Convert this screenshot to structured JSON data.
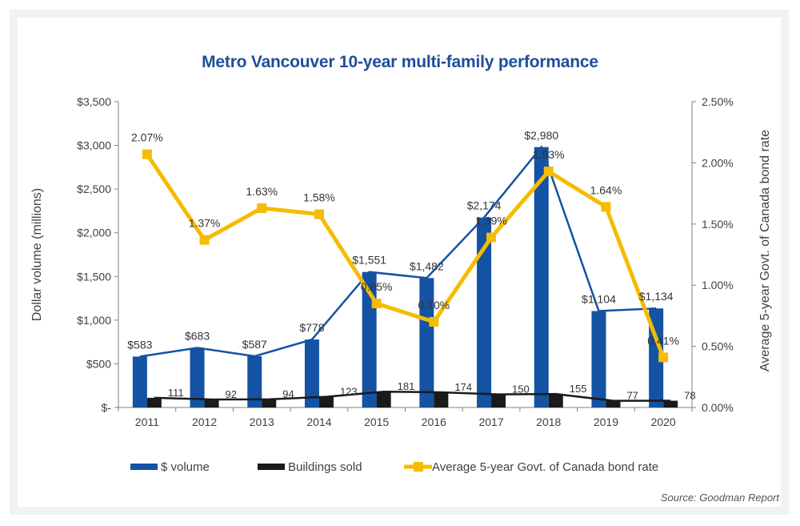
{
  "colors": {
    "volume": "#1452a3",
    "buildings": "#1a1a1a",
    "bond": "#f5bc00",
    "axis_text": "#404040"
  },
  "chart_data": {
    "type": "bar",
    "title": "Metro Vancouver 10-year multi-family performance",
    "categories": [
      "2011",
      "2012",
      "2013",
      "2014",
      "2015",
      "2016",
      "2017",
      "2018",
      "2019",
      "2020"
    ],
    "series": [
      {
        "name": "$ volume",
        "type": "bar+line",
        "axis": "left",
        "values": [
          583,
          683,
          587,
          778,
          1551,
          1482,
          2174,
          2980,
          1104,
          1134
        ],
        "labels": [
          "$583",
          "$683",
          "$587",
          "$778",
          "$1,551",
          "$1,482",
          "$2,174",
          "$2,980",
          "$1,104",
          "$1,134"
        ]
      },
      {
        "name": "Buildings sold",
        "type": "bar+line",
        "axis": "left",
        "values": [
          111,
          92,
          94,
          123,
          181,
          174,
          150,
          155,
          77,
          78
        ],
        "labels": [
          "111",
          "92",
          "94",
          "123",
          "181",
          "174",
          "150",
          "155",
          "77",
          "78"
        ]
      },
      {
        "name": "Average 5-year Govt. of Canada bond rate",
        "type": "line",
        "axis": "right",
        "values": [
          2.07,
          1.37,
          1.63,
          1.58,
          0.85,
          0.7,
          1.39,
          1.93,
          1.64,
          0.41
        ],
        "labels": [
          "2.07%",
          "1.37%",
          "1.63%",
          "1.58%",
          "0.85%",
          "0.70%",
          "1.39%",
          "1.93%",
          "1.64%",
          "0.41%"
        ]
      }
    ],
    "ylabel": "Dollar volume (millions)",
    "y2label": "Average 5-year Govt. of Canada bond rate",
    "ylim": [
      0,
      3500
    ],
    "y2lim": [
      0,
      2.5
    ],
    "yticks": [
      "$-",
      "$500",
      "$1,000",
      "$1,500",
      "$2,000",
      "$2,500",
      "$3,000",
      "$3,500"
    ],
    "y2ticks": [
      "0.00%",
      "0.50%",
      "1.00%",
      "1.50%",
      "2.00%",
      "2.50%"
    ],
    "legend_position": "bottom",
    "grid": false,
    "source": "Source: Goodman Report"
  }
}
